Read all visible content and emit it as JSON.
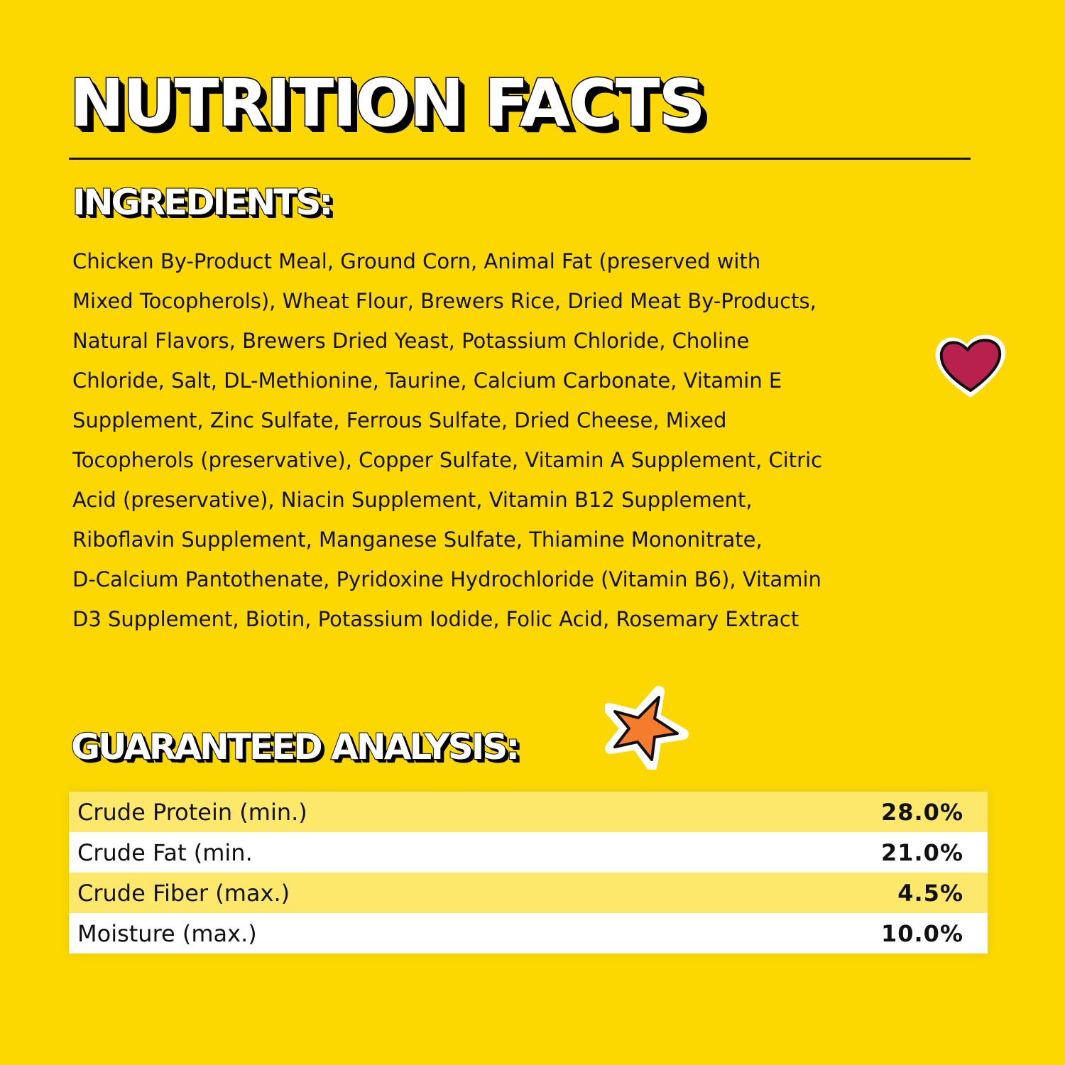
{
  "title": "NUTRITION FACTS",
  "ingredients": {
    "heading": "INGREDIENTS:",
    "lines": [
      "Chicken By-Product Meal, Ground Corn, Animal Fat (preserved with",
      "Mixed Tocopherols), Wheat Flour, Brewers Rice, Dried Meat By-Products,",
      "Natural Flavors, Brewers Dried Yeast, Potassium Chloride, Choline",
      "Chloride, Salt, DL-Methionine, Taurine, Calcium Carbonate, Vitamin E",
      "Supplement, Zinc Sulfate, Ferrous Sulfate, Dried Cheese, Mixed",
      "Tocopherols (preservative), Copper Sulfate, Vitamin A Supplement, Citric",
      "Acid (preservative), Niacin Supplement, Vitamin B12 Supplement,",
      "Riboflavin Supplement, Manganese Sulfate, Thiamine Mononitrate,",
      "D-Calcium Pantothenate, Pyridoxine Hydrochloride (Vitamin B6), Vitamin",
      "D3 Supplement, Biotin, Potassium Iodide, Folic Acid, Rosemary Extract"
    ]
  },
  "analysis": {
    "heading": "GUARANTEED ANALYSIS:",
    "rows": [
      {
        "label": "Crude Protein (min.)",
        "value": "28.0%"
      },
      {
        "label": "Crude Fat (min.",
        "value": "21.0%"
      },
      {
        "label": "Crude Fiber (max.)",
        "value": "4.5%"
      },
      {
        "label": "Moisture (max.)",
        "value": "10.0%"
      }
    ]
  },
  "decorations": {
    "heart_icon": "heart-icon",
    "star_icon": "star-icon"
  },
  "colors": {
    "background": "#fcd800",
    "row_highlight": "#fde86c",
    "heart": "#b8214e",
    "star": "#f47c2c"
  }
}
